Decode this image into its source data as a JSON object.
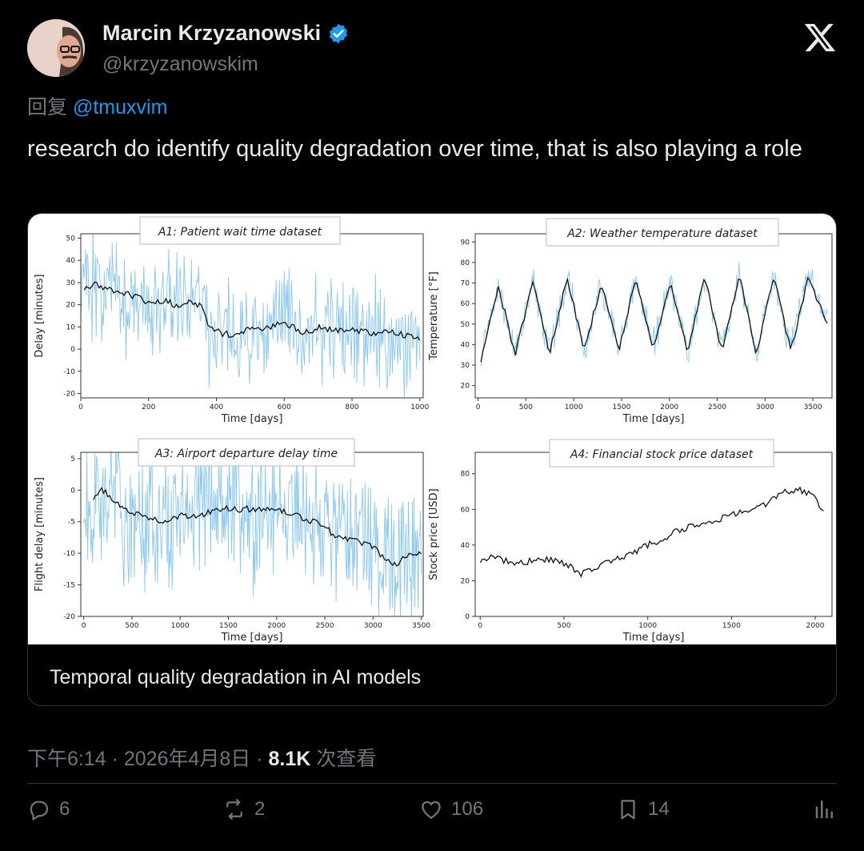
{
  "author": {
    "name": "Marcin Krzyzanowski",
    "handle": "@krzyzanowskim"
  },
  "reply": {
    "prefix": "回复",
    "to": "@tmuxvim"
  },
  "tweet": {
    "text": "research do identify quality degradation over time, that is also playing a role"
  },
  "card": {
    "caption": "Temporal quality degradation in AI models"
  },
  "meta": {
    "time": "下午6:14 · 2026年4月8日 · ",
    "views": "8.1K",
    "views_label": " 次查看"
  },
  "actions": {
    "replies": "6",
    "reposts": "2",
    "likes": "106",
    "bookmarks": "14"
  },
  "colors": {
    "accent": "#1d9bf0",
    "verified": "#1d9bf0",
    "muted": "#71767b",
    "noise": "#8cc8ee",
    "trend": "#111111"
  },
  "icons": [
    "verified-badge-icon",
    "x-logo-icon",
    "reply-icon",
    "repost-icon",
    "like-icon",
    "bookmark-icon",
    "analytics-icon"
  ],
  "chart_data": [
    {
      "type": "line",
      "title": "A1: Patient wait time dataset",
      "xlabel": "Time [days]",
      "ylabel": "Delay [minutes]",
      "xlim": [
        0,
        1010
      ],
      "ylim": [
        -22,
        52
      ],
      "xticks": [
        0,
        200,
        400,
        600,
        800,
        1000
      ],
      "yticks": [
        -20,
        -10,
        0,
        10,
        20,
        30,
        40,
        50
      ],
      "series": [
        {
          "kind": "noise",
          "x": [
            0,
            1000
          ],
          "band": 22
        },
        {
          "kind": "trend",
          "x": [
            10,
            40,
            80,
            120,
            160,
            200,
            240,
            280,
            320,
            360,
            380,
            420,
            460,
            500,
            560,
            600,
            660,
            700,
            760,
            800,
            860,
            900,
            960,
            1000
          ],
          "values": [
            28,
            29,
            27,
            25,
            24,
            21,
            22,
            20,
            21,
            20,
            9,
            7,
            6,
            9,
            10,
            12,
            7,
            10,
            8,
            9,
            7,
            8,
            6,
            5
          ]
        }
      ]
    },
    {
      "type": "line",
      "title": "A2: Weather temperature dataset",
      "xlabel": "Time [days]",
      "ylabel": "Temperature [°F]",
      "xlim": [
        -30,
        3700
      ],
      "ylim": [
        14,
        94
      ],
      "xticks": [
        0,
        500,
        1000,
        1500,
        2000,
        2500,
        3000,
        3500
      ],
      "yticks": [
        20,
        30,
        40,
        50,
        60,
        70,
        80,
        90
      ],
      "series": [
        {
          "kind": "noise",
          "x": [
            30,
            3650
          ],
          "band": 7
        },
        {
          "kind": "trend",
          "x": [
            30,
            210,
            390,
            570,
            750,
            930,
            1110,
            1290,
            1470,
            1650,
            1830,
            2010,
            2190,
            2370,
            2550,
            2730,
            2910,
            3090,
            3270,
            3450,
            3650
          ],
          "values": [
            33,
            68,
            35,
            71,
            36,
            73,
            37,
            70,
            37,
            72,
            38,
            71,
            36,
            73,
            37,
            74,
            36,
            73,
            37,
            72,
            51
          ]
        }
      ]
    },
    {
      "type": "line",
      "title": "A3: Airport departure delay time",
      "xlabel": "Time [days]",
      "ylabel": "Flight delay [minutes]",
      "xlim": [
        -30,
        3520
      ],
      "ylim": [
        -20,
        6
      ],
      "xticks": [
        0,
        500,
        1000,
        1500,
        2000,
        2500,
        3000,
        3500
      ],
      "yticks": [
        -20,
        -15,
        -10,
        -5,
        0,
        5
      ],
      "series": [
        {
          "kind": "noise",
          "x": [
            0,
            3500
          ],
          "band": 10
        },
        {
          "kind": "trend",
          "x": [
            100,
            200,
            400,
            600,
            800,
            1000,
            1200,
            1400,
            1600,
            1800,
            2000,
            2200,
            2400,
            2600,
            2800,
            3000,
            3200,
            3300,
            3400,
            3500
          ],
          "values": [
            -1,
            0,
            -3,
            -4,
            -5,
            -4,
            -4,
            -3,
            -3,
            -3,
            -3,
            -4,
            -5,
            -7,
            -8,
            -9,
            -12,
            -11,
            -10,
            -10
          ]
        }
      ]
    },
    {
      "type": "line",
      "title": "A4: Financial stock price dataset",
      "xlabel": "Time [days]",
      "ylabel": "Stock price [USD]",
      "xlim": [
        -30,
        2100
      ],
      "ylim": [
        0,
        92
      ],
      "xticks": [
        0,
        500,
        1000,
        1500,
        2000
      ],
      "yticks": [
        0,
        20,
        40,
        60,
        80
      ],
      "series": [
        {
          "kind": "trend",
          "x": [
            0,
            80,
            200,
            300,
            400,
            500,
            600,
            700,
            800,
            900,
            1000,
            1100,
            1200,
            1300,
            1400,
            1500,
            1600,
            1700,
            1800,
            1900,
            1980,
            2050
          ],
          "values": [
            32,
            34,
            29,
            31,
            32,
            30,
            24,
            28,
            32,
            35,
            40,
            44,
            49,
            51,
            54,
            57,
            59,
            63,
            70,
            71,
            68,
            59
          ]
        }
      ]
    }
  ]
}
